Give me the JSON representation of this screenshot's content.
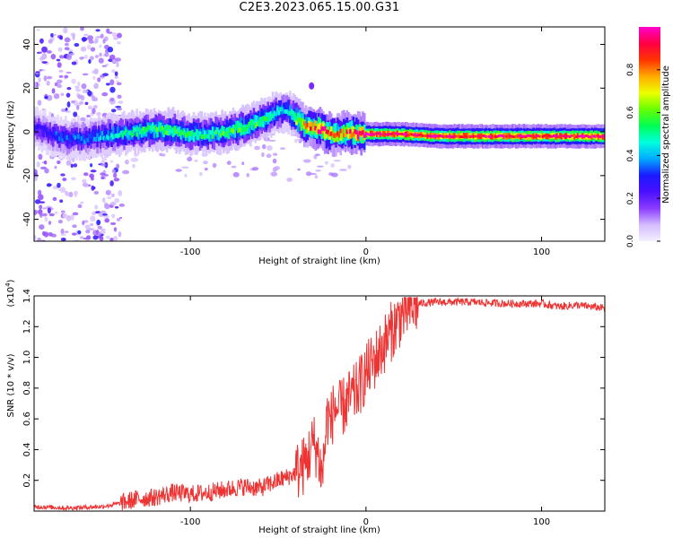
{
  "title": "C2E3.2023.065.15.00.G31",
  "colors": {
    "snr_line": "#ee3333",
    "axis": "#000000"
  },
  "colorbar": {
    "label": "Normalized spectral amplitude",
    "ticks": [
      0.0,
      0.2,
      0.4,
      0.6,
      0.8
    ],
    "tick_labels": [
      "0.0",
      "0.2",
      "0.4",
      "0.6",
      "0.8"
    ],
    "range": [
      0,
      1
    ],
    "colormap": [
      "#f4f0ff",
      "#d4bcff",
      "#8a3bff",
      "#4a10ff",
      "#1a1aff",
      "#00aaff",
      "#00ffdd",
      "#00ff55",
      "#66ff00",
      "#eeff00",
      "#ffaa00",
      "#ff3300",
      "#ff0044",
      "#ff00cc"
    ]
  },
  "chart_data": [
    {
      "type": "heatmap",
      "title": "C2E3.2023.065.15.00.G31",
      "xlabel": "Height of straight line (km)",
      "ylabel": "Frequency (Hz)",
      "xlim": [
        -189,
        136
      ],
      "ylim": [
        -50,
        48
      ],
      "x_ticks": [
        -100,
        0,
        100
      ],
      "x_tick_labels": [
        "-100",
        "0",
        "100"
      ],
      "y_ticks": [
        -40,
        -20,
        0,
        20,
        40
      ],
      "y_tick_labels": [
        "-40",
        "-20",
        "0",
        "20",
        "40"
      ],
      "ridge": {
        "x": [
          -189,
          -180,
          -170,
          -160,
          -150,
          -140,
          -130,
          -120,
          -110,
          -100,
          -90,
          -80,
          -70,
          -60,
          -55,
          -50,
          -45,
          -40,
          -35,
          -30,
          -25,
          -20,
          -15,
          -10,
          -5,
          0,
          10,
          20,
          40,
          60,
          80,
          100,
          120,
          136
        ],
        "y": [
          2,
          -1,
          -3,
          -3,
          -2,
          -1,
          0,
          1,
          1,
          -1,
          -1,
          0,
          2,
          5,
          7,
          9,
          10,
          6,
          3,
          2,
          1,
          -1,
          -1,
          0,
          -1,
          -1,
          -1,
          -1,
          -2,
          -2,
          -2,
          -2,
          -2,
          -2
        ],
        "amplitude": [
          0.25,
          0.3,
          0.35,
          0.35,
          0.4,
          0.45,
          0.5,
          0.55,
          0.55,
          0.5,
          0.5,
          0.55,
          0.6,
          0.55,
          0.5,
          0.45,
          0.4,
          0.6,
          0.75,
          0.85,
          0.9,
          0.85,
          0.8,
          0.85,
          0.9,
          0.95,
          0.95,
          0.95,
          0.95,
          0.95,
          0.95,
          0.95,
          0.95,
          0.95
        ]
      },
      "noise_region_x": [
        -189,
        -139
      ],
      "isolated_blob": {
        "x": -31,
        "y": 21
      }
    },
    {
      "type": "line",
      "xlabel": "Height of straight line (km)",
      "ylabel": "SNR (10 * v/v)",
      "y_multiplier_label": "(x10",
      "y_multiplier_exp": "4",
      "y_multiplier_close": ")",
      "xlim": [
        -189,
        136
      ],
      "ylim": [
        0,
        1.4
      ],
      "x_ticks": [
        -100,
        0,
        100
      ],
      "x_tick_labels": [
        "-100",
        "0",
        "100"
      ],
      "y_ticks": [
        0.2,
        0.4,
        0.6,
        0.8,
        1.0,
        1.2,
        1.4
      ],
      "y_tick_labels": [
        "0.2",
        "0.4",
        "0.6",
        "0.8",
        "1.0",
        "1.2",
        "1.4"
      ],
      "series": [
        {
          "color": "#ee3333",
          "x": [
            -189,
            -170,
            -150,
            -140,
            -130,
            -120,
            -110,
            -100,
            -90,
            -80,
            -70,
            -60,
            -50,
            -45,
            -40,
            -35,
            -32,
            -30,
            -28,
            -26,
            -25,
            -24,
            -22,
            -20,
            -18,
            -15,
            -10,
            -5,
            0,
            5,
            10,
            15,
            20,
            25,
            30,
            40,
            60,
            80,
            100,
            110,
            120,
            136
          ],
          "y": [
            0.03,
            0.02,
            0.03,
            0.05,
            0.08,
            0.09,
            0.12,
            0.11,
            0.12,
            0.14,
            0.16,
            0.15,
            0.2,
            0.22,
            0.25,
            0.3,
            0.38,
            0.45,
            0.4,
            0.3,
            0.22,
            0.35,
            0.62,
            0.58,
            0.68,
            0.65,
            0.72,
            0.78,
            0.9,
            0.98,
            1.08,
            1.18,
            1.27,
            1.32,
            1.35,
            1.36,
            1.36,
            1.35,
            1.35,
            1.33,
            1.34,
            1.32
          ]
        }
      ]
    }
  ]
}
